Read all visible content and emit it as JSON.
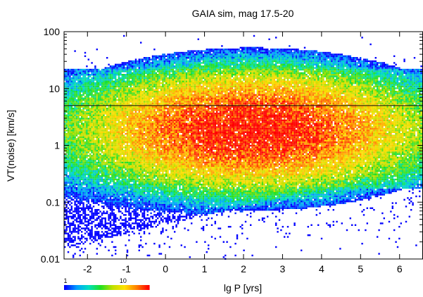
{
  "chart_data": {
    "type": "heatmap",
    "title": "GAIA sim, mag 17.5-20",
    "xlabel": "lg P [yrs]",
    "ylabel": "VT(noise) [km/s]",
    "xlim": [
      -2.6,
      6.6
    ],
    "ylim": [
      0.01,
      100
    ],
    "yscale": "log",
    "grid": false,
    "x_ticks": [
      -2,
      -1,
      0,
      1,
      2,
      3,
      4,
      5,
      6
    ],
    "x_tick_labels": [
      "-2",
      "-1",
      "0",
      "1",
      "2",
      "3",
      "4",
      "5",
      "6"
    ],
    "y_ticks": [
      0.01,
      0.1,
      1,
      10,
      100
    ],
    "y_tick_labels": [
      "0.01",
      "0.1",
      "1",
      "10",
      "100"
    ],
    "reference_line": {
      "y": 5,
      "color": "#000000"
    },
    "density_model": {
      "description_of_counts": "per-cell star counts, colour-coded on a log scale from 1 to ~30",
      "peak_lgP": 2.2,
      "peak_lgVT": 0.3,
      "peak_count": 30,
      "upper_envelope_lgVT": 1.35,
      "lower_envelope_lgVT_at_lgP_minus2": -1.7,
      "lower_envelope_lgVT_at_lgP_3": -0.9
    },
    "colorbar": {
      "scale": "log",
      "min": 1,
      "max": 30,
      "tick_values": [
        1,
        10
      ],
      "tick_labels": [
        "1",
        "10"
      ],
      "colors": [
        "#0000ff",
        "#00a0ff",
        "#00e0c0",
        "#20e020",
        "#c0e000",
        "#ffe000",
        "#ff8000",
        "#ff0000"
      ]
    }
  }
}
